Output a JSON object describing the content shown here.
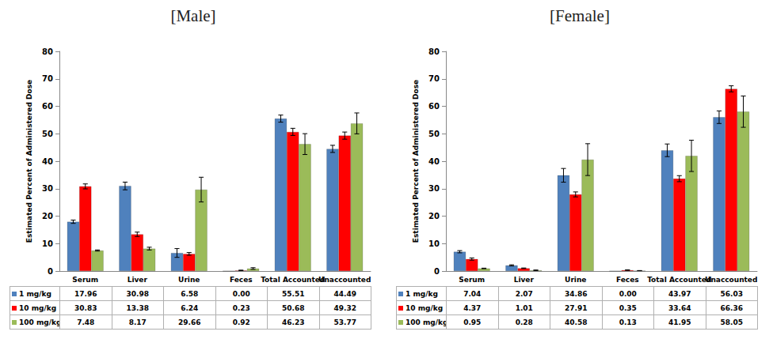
{
  "chart_data": [
    {
      "type": "bar",
      "title": "[Male]",
      "y_label": "Estimated Percent of Administered Dose",
      "categories": [
        "Serum",
        "Liver",
        "Urine",
        "Feces",
        "Total Accounted",
        "Unaccounted"
      ],
      "ylim": [
        0,
        80
      ],
      "yticks": [
        0,
        10,
        20,
        30,
        40,
        50,
        60,
        70,
        80
      ],
      "grid": false,
      "series": [
        {
          "name": "1 mg/kg",
          "color": "#4f81bd",
          "values": [
            17.96,
            30.98,
            6.58,
            0,
            55.51,
            44.49
          ],
          "value_labels": [
            "17.96",
            "30.98",
            "6.58",
            "0.00",
            "55.51",
            "44.49"
          ],
          "errors": [
            0.6,
            1.4,
            1.6,
            0,
            1.3,
            1.3
          ]
        },
        {
          "name": "10 mg/kg",
          "color": "#ff0000",
          "values": [
            30.83,
            13.38,
            6.24,
            0.23,
            50.68,
            49.32
          ],
          "value_labels": [
            "30.83",
            "13.38",
            "6.24",
            "0.23",
            "50.68",
            "49.32"
          ],
          "errors": [
            0.9,
            0.8,
            0.5,
            0.1,
            1.3,
            1.3
          ]
        },
        {
          "name": "100 mg/kg",
          "color": "#9bbb59",
          "values": [
            7.48,
            8.17,
            29.66,
            0.92,
            46.23,
            53.77
          ],
          "value_labels": [
            "7.48",
            "8.17",
            "29.66",
            "0.92",
            "46.23",
            "53.77"
          ],
          "errors": [
            0.2,
            0.5,
            4.5,
            0.3,
            3.8,
            3.8
          ]
        }
      ]
    },
    {
      "type": "bar",
      "title": "[Female]",
      "y_label": "Estimated Percent of Administered Dose",
      "categories": [
        "Serum",
        "Liver",
        "Urine",
        "Feces",
        "Total Accounted",
        "Unaccounted"
      ],
      "ylim": [
        0,
        80
      ],
      "yticks": [
        0,
        10,
        20,
        30,
        40,
        50,
        60,
        70,
        80
      ],
      "grid": false,
      "series": [
        {
          "name": "1 mg/kg",
          "color": "#4f81bd",
          "values": [
            7.04,
            2.07,
            34.86,
            0,
            43.97,
            56.03
          ],
          "value_labels": [
            "7.04",
            "2.07",
            "34.86",
            "0.00",
            "43.97",
            "56.03"
          ],
          "errors": [
            0.4,
            0.2,
            2.5,
            0,
            2.3,
            2.3
          ]
        },
        {
          "name": "10 mg/kg",
          "color": "#ff0000",
          "values": [
            4.37,
            1.01,
            27.91,
            0.35,
            33.64,
            66.36
          ],
          "value_labels": [
            "4.37",
            "1.01",
            "27.91",
            "0.35",
            "33.64",
            "66.36"
          ],
          "errors": [
            0.4,
            0.1,
            0.9,
            0.1,
            1.1,
            1.1
          ]
        },
        {
          "name": "100 mg/kg",
          "color": "#9bbb59",
          "values": [
            0.95,
            0.28,
            40.58,
            0.13,
            41.95,
            58.05
          ],
          "value_labels": [
            "0.95",
            "0.28",
            "40.58",
            "0.13",
            "41.95",
            "58.05"
          ],
          "errors": [
            0.1,
            0.1,
            5.8,
            0.05,
            5.7,
            5.7
          ]
        }
      ]
    }
  ]
}
